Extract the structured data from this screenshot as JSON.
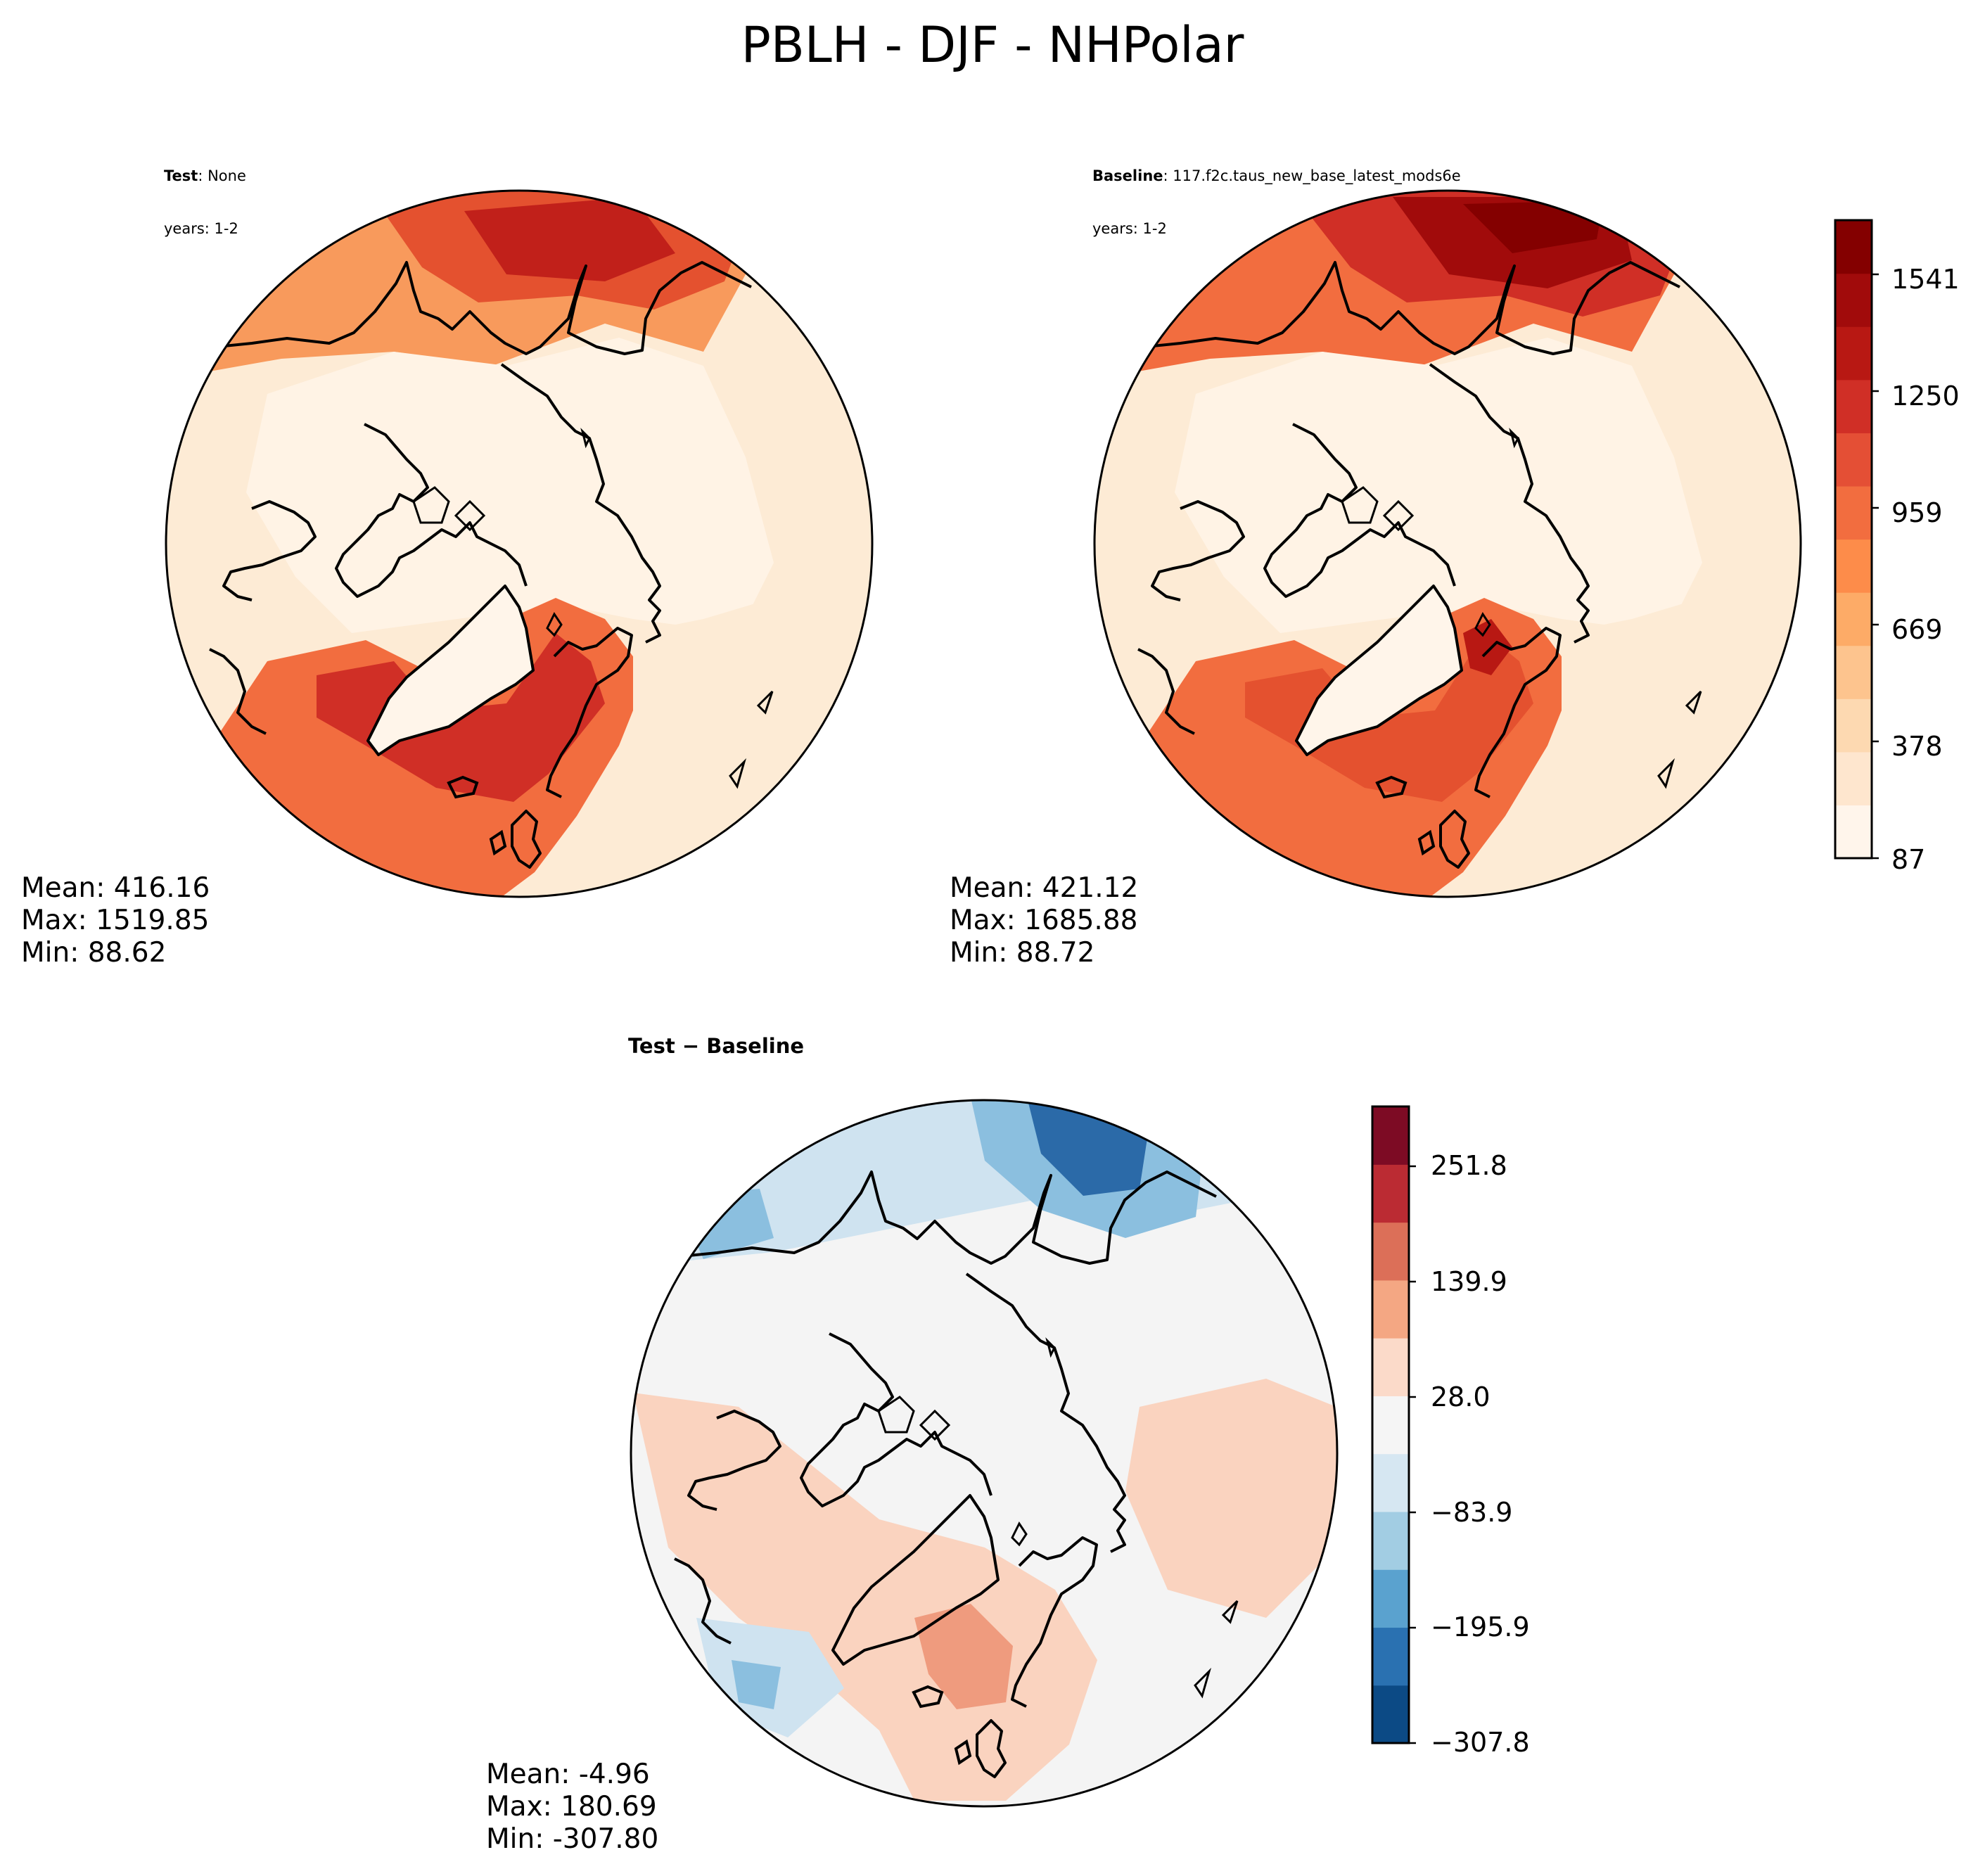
{
  "title": "PBLH - DJF - NHPolar",
  "panels": {
    "test": {
      "name_bold": "Test",
      "name_rest": ": None",
      "years": "years: 1-2",
      "stats": {
        "mean": "Mean: 416.16",
        "max": "Max: 1519.85",
        "min": "Min: 88.62"
      }
    },
    "baseline": {
      "name_bold": "Baseline",
      "name_rest": ": 117.f2c.taus_new_base_latest_mods6e",
      "years": "years: 1-2",
      "stats": {
        "mean": "Mean: 421.12",
        "max": "Max: 1685.88",
        "min": "Min: 88.72"
      }
    },
    "diff": {
      "title_a": "Test",
      "title_sep": " − ",
      "title_b": "Baseline",
      "stats": {
        "mean": "Mean: -4.96",
        "max": "Max: 180.69",
        "min": "Min: -307.80"
      }
    }
  },
  "colorbars": {
    "main": {
      "ticks": [
        "87",
        "378",
        "669",
        "959",
        "1250",
        "1541"
      ],
      "colors": [
        "#fff5eb",
        "#fee6ce",
        "#fdd9b1",
        "#fdc48e",
        "#fdab67",
        "#fd8c4a",
        "#f26d3f",
        "#e44f35",
        "#d02f26",
        "#b81813",
        "#a10b0b",
        "#840000"
      ]
    },
    "diff": {
      "ticks": [
        "−307.8",
        "−195.9",
        "−83.9",
        "28.0",
        "139.9",
        "251.8"
      ],
      "colors": [
        "#0c4a85",
        "#2a71b1",
        "#5aa2cf",
        "#a2cde3",
        "#d6e7f2",
        "#f5f5f5",
        "#fbdac9",
        "#f4a783",
        "#dc6f58",
        "#bb2b33",
        "#7d0b24"
      ]
    }
  },
  "map_colors": {
    "ocean_light": "#fdebd5",
    "land_light": "#fff3e5",
    "warm_mid": "#f89a5c",
    "warm_high": "#e4512f",
    "warm_peak": "#c1201a",
    "warm_max": "#8f0707",
    "diff_neutral": "#f4f4f4",
    "diff_pos": "#fad3bf",
    "diff_pos2": "#ef9b7e",
    "diff_neg": "#cfe3f0",
    "diff_neg2": "#8bbfdf",
    "diff_neg3": "#2b6aa8"
  }
}
